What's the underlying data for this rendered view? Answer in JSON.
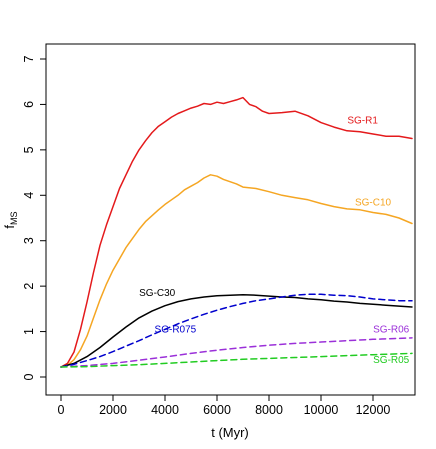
{
  "chart_data": {
    "type": "line",
    "xlabel": "t (Myr)",
    "ylabel_main": "f",
    "ylabel_sub": "MS",
    "xlim": [
      0,
      13500
    ],
    "ylim": [
      0,
      7
    ],
    "x_ticks": [
      0,
      2000,
      4000,
      6000,
      8000,
      10000,
      12000
    ],
    "y_ticks": [
      0,
      1,
      2,
      3,
      4,
      5,
      6,
      7
    ],
    "grid": false,
    "series": [
      {
        "name": "SG-R1",
        "color": "#e41a1c",
        "dash": "solid",
        "label_at": [
          11600,
          5.58
        ],
        "x": [
          0,
          250,
          500,
          750,
          1000,
          1250,
          1500,
          1750,
          2000,
          2250,
          2500,
          2750,
          3000,
          3250,
          3500,
          3750,
          4000,
          4250,
          4500,
          4750,
          5000,
          5250,
          5500,
          5750,
          6000,
          6250,
          6500,
          6750,
          7000,
          7250,
          7500,
          7750,
          8000,
          8500,
          9000,
          9500,
          10000,
          10500,
          11000,
          11500,
          12000,
          12500,
          13000,
          13500
        ],
        "y": [
          0.22,
          0.3,
          0.55,
          1.05,
          1.65,
          2.3,
          2.9,
          3.35,
          3.75,
          4.15,
          4.45,
          4.75,
          5.0,
          5.2,
          5.38,
          5.52,
          5.62,
          5.72,
          5.8,
          5.86,
          5.92,
          5.96,
          6.02,
          6.0,
          6.05,
          6.02,
          6.06,
          6.1,
          6.15,
          6.0,
          5.95,
          5.85,
          5.8,
          5.82,
          5.85,
          5.75,
          5.6,
          5.5,
          5.42,
          5.4,
          5.35,
          5.3,
          5.3,
          5.25
        ]
      },
      {
        "name": "SG-C10",
        "color": "#f5a623",
        "dash": "solid",
        "label_at": [
          12000,
          3.78
        ],
        "x": [
          0,
          250,
          500,
          750,
          1000,
          1250,
          1500,
          1750,
          2000,
          2250,
          2500,
          2750,
          3000,
          3250,
          3500,
          3750,
          4000,
          4250,
          4500,
          4750,
          5000,
          5250,
          5500,
          5750,
          6000,
          6250,
          6500,
          6750,
          7000,
          7500,
          8000,
          8500,
          9000,
          9500,
          10000,
          10500,
          11000,
          11500,
          12000,
          12500,
          13000,
          13500
        ],
        "y": [
          0.22,
          0.26,
          0.38,
          0.6,
          0.9,
          1.3,
          1.7,
          2.05,
          2.35,
          2.6,
          2.85,
          3.05,
          3.25,
          3.42,
          3.55,
          3.68,
          3.8,
          3.9,
          4.0,
          4.12,
          4.2,
          4.28,
          4.38,
          4.45,
          4.42,
          4.35,
          4.3,
          4.25,
          4.18,
          4.15,
          4.08,
          4.0,
          3.95,
          3.9,
          3.82,
          3.75,
          3.7,
          3.68,
          3.62,
          3.58,
          3.5,
          3.38
        ]
      },
      {
        "name": "SG-C30",
        "color": "#000000",
        "dash": "solid",
        "label_at": [
          3700,
          1.78
        ],
        "x": [
          0,
          500,
          1000,
          1500,
          2000,
          2500,
          3000,
          3500,
          4000,
          4500,
          5000,
          5500,
          6000,
          6500,
          7000,
          7500,
          8000,
          8500,
          9000,
          9500,
          10000,
          10500,
          11000,
          11500,
          12000,
          12500,
          13000,
          13500
        ],
        "y": [
          0.22,
          0.3,
          0.45,
          0.65,
          0.88,
          1.1,
          1.3,
          1.45,
          1.57,
          1.66,
          1.72,
          1.76,
          1.79,
          1.8,
          1.81,
          1.8,
          1.78,
          1.76,
          1.75,
          1.72,
          1.7,
          1.67,
          1.65,
          1.62,
          1.6,
          1.58,
          1.56,
          1.54
        ]
      },
      {
        "name": "SG-R075",
        "color": "#0000cd",
        "dash": "dashed",
        "label_at": [
          4400,
          0.98
        ],
        "x": [
          0,
          500,
          1000,
          1500,
          2000,
          2500,
          3000,
          3500,
          4000,
          4500,
          5000,
          5500,
          6000,
          6500,
          7000,
          7500,
          8000,
          8500,
          9000,
          9500,
          10000,
          10500,
          11000,
          11500,
          12000,
          12500,
          13000,
          13500
        ],
        "y": [
          0.22,
          0.28,
          0.36,
          0.45,
          0.56,
          0.68,
          0.8,
          0.93,
          1.05,
          1.17,
          1.28,
          1.38,
          1.47,
          1.55,
          1.62,
          1.68,
          1.72,
          1.76,
          1.8,
          1.82,
          1.82,
          1.8,
          1.79,
          1.76,
          1.72,
          1.7,
          1.68,
          1.68
        ]
      },
      {
        "name": "SG-R06",
        "color": "#9b30d9",
        "dash": "dashed",
        "label_at": [
          12700,
          0.98
        ],
        "x": [
          0,
          1000,
          2000,
          3000,
          4000,
          5000,
          6000,
          7000,
          8000,
          9000,
          10000,
          11000,
          12000,
          13000,
          13500
        ],
        "y": [
          0.22,
          0.25,
          0.3,
          0.37,
          0.44,
          0.52,
          0.59,
          0.65,
          0.7,
          0.74,
          0.77,
          0.8,
          0.83,
          0.85,
          0.86
        ]
      },
      {
        "name": "SG-R05",
        "color": "#22cc22",
        "dash": "dashed",
        "label_at": [
          12700,
          0.31
        ],
        "x": [
          0,
          1000,
          2000,
          3000,
          4000,
          5000,
          6000,
          7000,
          8000,
          9000,
          10000,
          11000,
          12000,
          13000,
          13500
        ],
        "y": [
          0.22,
          0.23,
          0.25,
          0.27,
          0.3,
          0.33,
          0.36,
          0.39,
          0.41,
          0.43,
          0.45,
          0.47,
          0.49,
          0.51,
          0.52
        ]
      }
    ]
  }
}
